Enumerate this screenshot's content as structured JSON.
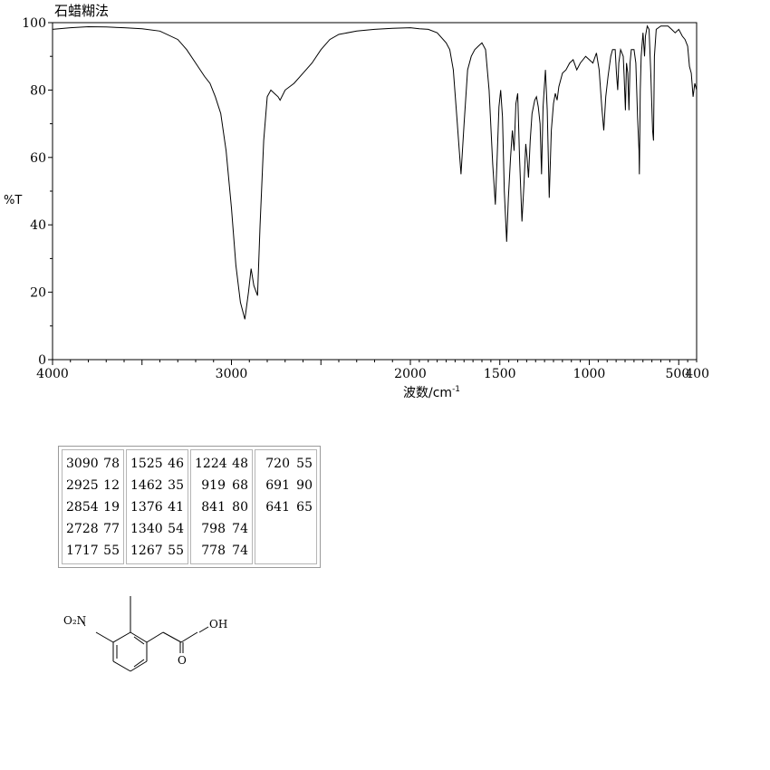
{
  "chart_data": {
    "type": "line",
    "title": "石蜡糊法",
    "xlabel": "波数/cm",
    "xlabel_sup": "-1",
    "ylabel": "%T",
    "xlim": [
      4000,
      400
    ],
    "ylim": [
      0,
      100
    ],
    "x_ticks": [
      {
        "value": 4000,
        "label": "4000"
      },
      {
        "value": 3000,
        "label": "3000"
      },
      {
        "value": 2000,
        "label": "2000"
      },
      {
        "value": 1500,
        "label": "1500"
      },
      {
        "value": 1000,
        "label": "1000"
      },
      {
        "value": 500,
        "label": "500"
      },
      {
        "value": 400,
        "label": "400"
      }
    ],
    "y_ticks": [
      0,
      20,
      40,
      60,
      80,
      100
    ],
    "grid": false,
    "series": [
      {
        "points": [
          [
            4000,
            98
          ],
          [
            3900,
            98.5
          ],
          [
            3800,
            98.8
          ],
          [
            3700,
            98.7
          ],
          [
            3600,
            98.5
          ],
          [
            3500,
            98.2
          ],
          [
            3400,
            97.5
          ],
          [
            3300,
            95
          ],
          [
            3250,
            92
          ],
          [
            3200,
            88
          ],
          [
            3150,
            84
          ],
          [
            3120,
            82
          ],
          [
            3090,
            78
          ],
          [
            3060,
            73
          ],
          [
            3030,
            62
          ],
          [
            3000,
            45
          ],
          [
            2975,
            28
          ],
          [
            2950,
            17
          ],
          [
            2925,
            12
          ],
          [
            2905,
            20
          ],
          [
            2890,
            27
          ],
          [
            2875,
            22
          ],
          [
            2854,
            19
          ],
          [
            2840,
            40
          ],
          [
            2820,
            65
          ],
          [
            2800,
            78
          ],
          [
            2780,
            80
          ],
          [
            2760,
            79
          ],
          [
            2740,
            78
          ],
          [
            2728,
            77
          ],
          [
            2700,
            80
          ],
          [
            2650,
            82
          ],
          [
            2600,
            85
          ],
          [
            2550,
            88
          ],
          [
            2500,
            92
          ],
          [
            2450,
            95
          ],
          [
            2400,
            96.5
          ],
          [
            2300,
            97.5
          ],
          [
            2200,
            98
          ],
          [
            2100,
            98.3
          ],
          [
            2000,
            98.5
          ],
          [
            1950,
            98.2
          ],
          [
            1900,
            98
          ],
          [
            1850,
            97
          ],
          [
            1800,
            94
          ],
          [
            1780,
            92
          ],
          [
            1760,
            86
          ],
          [
            1740,
            72
          ],
          [
            1717,
            55
          ],
          [
            1700,
            70
          ],
          [
            1680,
            86
          ],
          [
            1660,
            90
          ],
          [
            1640,
            92
          ],
          [
            1620,
            93
          ],
          [
            1600,
            94
          ],
          [
            1580,
            92
          ],
          [
            1560,
            80
          ],
          [
            1540,
            58
          ],
          [
            1525,
            46
          ],
          [
            1515,
            60
          ],
          [
            1505,
            75
          ],
          [
            1495,
            80
          ],
          [
            1485,
            72
          ],
          [
            1475,
            50
          ],
          [
            1462,
            35
          ],
          [
            1452,
            48
          ],
          [
            1440,
            60
          ],
          [
            1430,
            68
          ],
          [
            1420,
            62
          ],
          [
            1410,
            76
          ],
          [
            1400,
            79
          ],
          [
            1390,
            60
          ],
          [
            1376,
            41
          ],
          [
            1365,
            52
          ],
          [
            1355,
            64
          ],
          [
            1348,
            60
          ],
          [
            1340,
            54
          ],
          [
            1330,
            65
          ],
          [
            1320,
            73
          ],
          [
            1305,
            77
          ],
          [
            1295,
            78
          ],
          [
            1285,
            75
          ],
          [
            1275,
            70
          ],
          [
            1267,
            55
          ],
          [
            1258,
            75
          ],
          [
            1245,
            86
          ],
          [
            1235,
            74
          ],
          [
            1224,
            48
          ],
          [
            1212,
            68
          ],
          [
            1200,
            76
          ],
          [
            1190,
            79
          ],
          [
            1180,
            77
          ],
          [
            1170,
            81
          ],
          [
            1150,
            85
          ],
          [
            1130,
            86
          ],
          [
            1110,
            88
          ],
          [
            1090,
            89
          ],
          [
            1070,
            86
          ],
          [
            1050,
            88
          ],
          [
            1020,
            90
          ],
          [
            1000,
            89
          ],
          [
            980,
            88
          ],
          [
            960,
            91
          ],
          [
            945,
            86
          ],
          [
            930,
            75
          ],
          [
            919,
            68
          ],
          [
            908,
            78
          ],
          [
            895,
            84
          ],
          [
            880,
            90
          ],
          [
            870,
            92
          ],
          [
            855,
            92
          ],
          [
            848,
            85
          ],
          [
            841,
            80
          ],
          [
            835,
            88
          ],
          [
            825,
            92
          ],
          [
            810,
            90
          ],
          [
            805,
            84
          ],
          [
            798,
            74
          ],
          [
            792,
            88
          ],
          [
            785,
            85
          ],
          [
            778,
            74
          ],
          [
            772,
            88
          ],
          [
            765,
            92
          ],
          [
            750,
            92
          ],
          [
            740,
            88
          ],
          [
            730,
            72
          ],
          [
            722,
            62
          ],
          [
            720,
            55
          ],
          [
            715,
            80
          ],
          [
            710,
            90
          ],
          [
            700,
            97
          ],
          [
            691,
            90
          ],
          [
            686,
            96
          ],
          [
            676,
            99
          ],
          [
            666,
            98
          ],
          [
            656,
            85
          ],
          [
            646,
            68
          ],
          [
            641,
            65
          ],
          [
            636,
            90
          ],
          [
            626,
            98
          ],
          [
            600,
            99
          ],
          [
            560,
            99
          ],
          [
            540,
            98
          ],
          [
            520,
            97
          ],
          [
            500,
            98
          ],
          [
            480,
            96
          ],
          [
            465,
            95
          ],
          [
            450,
            93
          ],
          [
            440,
            87
          ],
          [
            430,
            85
          ],
          [
            420,
            78
          ],
          [
            410,
            82
          ],
          [
            400,
            80
          ]
        ]
      }
    ]
  },
  "peak_table": {
    "columns": [
      [
        [
          "3090",
          "78"
        ],
        [
          "2925",
          "12"
        ],
        [
          "2854",
          "19"
        ],
        [
          "2728",
          "77"
        ],
        [
          "1717",
          "55"
        ]
      ],
      [
        [
          "1525",
          "46"
        ],
        [
          "1462",
          "35"
        ],
        [
          "1376",
          "41"
        ],
        [
          "1340",
          "54"
        ],
        [
          "1267",
          "55"
        ]
      ],
      [
        [
          "1224",
          "48"
        ],
        [
          "919",
          "68"
        ],
        [
          "841",
          "80"
        ],
        [
          "798",
          "74"
        ],
        [
          "778",
          "74"
        ]
      ],
      [
        [
          "720",
          "55"
        ],
        [
          "691",
          "90"
        ],
        [
          "641",
          "65"
        ]
      ]
    ]
  },
  "structure": {
    "substituent_nitro": "O₂N",
    "acid_oh": "OH",
    "carbonyl_o": "O"
  }
}
